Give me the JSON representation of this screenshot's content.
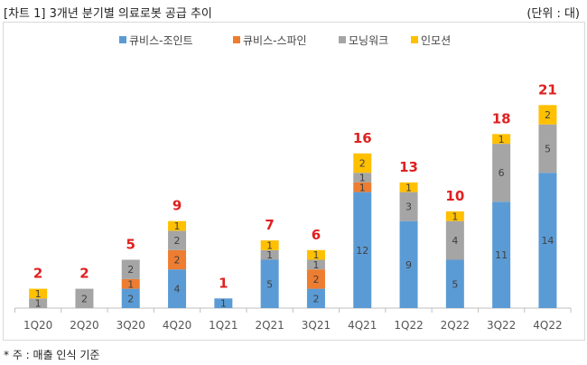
{
  "header": {
    "title": "[차트 1] 3개년 분기별 의료로봇 공급 추이",
    "unit": "(단위 : 대)"
  },
  "footnote": "* 주 : 매출 인식 기준",
  "chart_data": {
    "type": "bar",
    "stacked": true,
    "title": "3개년 분기별 의료로봇 공급 추이",
    "categories": [
      "1Q20",
      "2Q20",
      "3Q20",
      "4Q20",
      "1Q21",
      "2Q21",
      "3Q21",
      "4Q21",
      "1Q22",
      "2Q22",
      "3Q22",
      "4Q22"
    ],
    "series": [
      {
        "name": "큐비스-조인트",
        "color": "#5b9bd5",
        "values": [
          0,
          0,
          2,
          4,
          1,
          5,
          2,
          12,
          9,
          5,
          11,
          14
        ]
      },
      {
        "name": "큐비스-스파인",
        "color": "#ed7d31",
        "values": [
          0,
          0,
          1,
          2,
          0,
          0,
          2,
          1,
          0,
          0,
          0,
          0
        ]
      },
      {
        "name": "모닝워크",
        "color": "#a5a5a5",
        "values": [
          1,
          2,
          2,
          2,
          0,
          1,
          1,
          1,
          3,
          4,
          6,
          5
        ]
      },
      {
        "name": "인모션",
        "color": "#ffc000",
        "values": [
          1,
          0,
          0,
          1,
          0,
          1,
          1,
          2,
          1,
          1,
          1,
          2
        ]
      }
    ],
    "totals": [
      2,
      2,
      5,
      9,
      1,
      7,
      6,
      16,
      13,
      10,
      18,
      21
    ],
    "total_label_color": "#e02020",
    "ylim": [
      0,
      21
    ],
    "grid": false,
    "legend": "top-center",
    "xlabel": "",
    "ylabel": ""
  }
}
